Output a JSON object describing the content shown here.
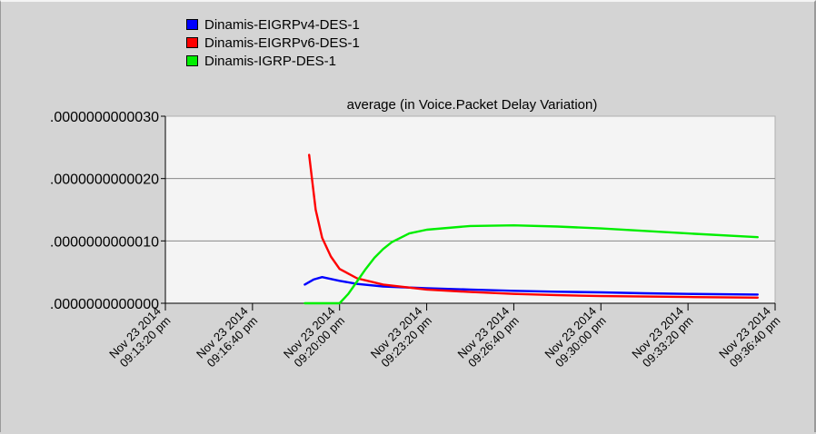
{
  "chart_data": {
    "type": "line",
    "title": "average (in Voice.Packet Delay Variation)",
    "xlabel": "",
    "ylabel": "",
    "x_ticks": [
      [
        "Nov 23 2014",
        "09:13:20 pm"
      ],
      [
        "Nov 23 2014",
        "09:16:40 pm"
      ],
      [
        "Nov 23 2014",
        "09:20:00 pm"
      ],
      [
        "Nov 23 2014",
        "09:23:20 pm"
      ],
      [
        "Nov 23 2014",
        "09:26:40 pm"
      ],
      [
        "Nov 23 2014",
        "09:30:00 pm"
      ],
      [
        "Nov 23 2014",
        "09:33:20 pm"
      ],
      [
        "Nov 23 2014",
        "09:36:40 pm"
      ]
    ],
    "y_ticks": [
      ".0000000000030",
      ".0000000000020",
      ".0000000000010",
      ".0000000000000"
    ],
    "xlim": [
      "09:13:20 pm",
      "09:36:40 pm"
    ],
    "ylim": [
      0,
      3e-12
    ],
    "grid": "horizontal",
    "legend_position": "top-left",
    "series": [
      {
        "name": "Dinamis-EIGRPv4-DES-1",
        "color": "#0000ff",
        "x": [
          "09:18:40 pm",
          "09:19:00 pm",
          "09:19:20 pm",
          "09:20:00 pm",
          "09:20:40 pm",
          "09:21:40 pm",
          "09:23:20 pm",
          "09:25:00 pm",
          "09:26:40 pm",
          "09:28:20 pm",
          "09:30:00 pm",
          "09:31:40 pm",
          "09:33:20 pm",
          "09:36:00 pm"
        ],
        "y": [
          3e-13,
          3.8e-13,
          4.2e-13,
          3.6e-13,
          3.1e-13,
          2.7e-13,
          2.4e-13,
          2.2e-13,
          2e-13,
          1.85e-13,
          1.75e-13,
          1.6e-13,
          1.5e-13,
          1.4e-13
        ]
      },
      {
        "name": "Dinamis-EIGRPv6-DES-1",
        "color": "#ff0000",
        "x": [
          "09:18:50 pm",
          "09:19:05 pm",
          "09:19:20 pm",
          "09:19:40 pm",
          "09:20:00 pm",
          "09:20:40 pm",
          "09:21:40 pm",
          "09:23:20 pm",
          "09:25:00 pm",
          "09:26:40 pm",
          "09:28:20 pm",
          "09:30:00 pm",
          "09:33:20 pm",
          "09:36:00 pm"
        ],
        "y": [
          2.38e-12,
          1.5e-12,
          1.05e-12,
          7.5e-13,
          5.5e-13,
          4e-13,
          3e-13,
          2.2e-13,
          1.8e-13,
          1.5e-13,
          1.3e-13,
          1.15e-13,
          1e-13,
          9e-14
        ]
      },
      {
        "name": "Dinamis-IGRP-DES-1",
        "color": "#00ee00",
        "x": [
          "09:18:40 pm",
          "09:19:20 pm",
          "09:20:00 pm",
          "09:20:20 pm",
          "09:20:40 pm",
          "09:21:00 pm",
          "09:21:20 pm",
          "09:21:40 pm",
          "09:22:00 pm",
          "09:22:40 pm",
          "09:23:20 pm",
          "09:25:00 pm",
          "09:26:40 pm",
          "09:28:20 pm",
          "09:30:00 pm",
          "09:31:40 pm",
          "09:33:20 pm",
          "09:36:00 pm"
        ],
        "y": [
          0,
          0,
          0,
          1.5e-13,
          3.5e-13,
          5.5e-13,
          7.3e-13,
          8.7e-13,
          9.8e-13,
          1.12e-12,
          1.18e-12,
          1.24e-12,
          1.25e-12,
          1.23e-12,
          1.2e-12,
          1.16e-12,
          1.12e-12,
          1.06e-12
        ]
      }
    ]
  },
  "colors": {
    "background": "#d4d4d4",
    "plot_area": "#f4f4f4",
    "grid": "#888888",
    "axis": "#000000"
  }
}
